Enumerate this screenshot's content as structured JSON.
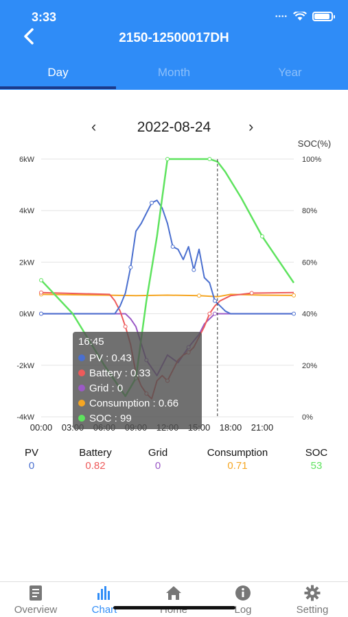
{
  "status": {
    "time": "3:33"
  },
  "header": {
    "title": "2150-12500017DH"
  },
  "tabs": [
    {
      "label": "Day"
    },
    {
      "label": "Month"
    },
    {
      "label": "Year"
    }
  ],
  "date": {
    "prev_label": "‹",
    "value": "2022-08-24",
    "next_label": "›"
  },
  "colors": {
    "pv": "#4a6fcf",
    "battery": "#ee5a5a",
    "grid": "#9b59c6",
    "consumption": "#f5a623",
    "soc": "#5ee35e",
    "accent": "#2f8cf7"
  },
  "chart_data": {
    "type": "line",
    "x_ticks": [
      "00:00",
      "03:00",
      "06:00",
      "09:00",
      "12:00",
      "15:00",
      "18:00",
      "21:00"
    ],
    "y_left_ticks": [
      "6kW",
      "4kW",
      "2kW",
      "0kW",
      "-2kW",
      "-4kW"
    ],
    "y_right_label": "SOC(%)",
    "y_right_ticks": [
      "100%",
      "80%",
      "60%",
      "40%",
      "20%",
      "0%"
    ],
    "ylim_left": [
      -4,
      6
    ],
    "ylim_right": [
      0,
      100
    ],
    "xlim_hours": [
      0,
      24
    ],
    "cursor_time": "16:45",
    "series": [
      {
        "name": "PV",
        "x": [
          0,
          7,
          7.5,
          8,
          8.5,
          9,
          9.5,
          10,
          10.5,
          11,
          11.5,
          12,
          12.5,
          13,
          13.5,
          14,
          14.5,
          15,
          15.5,
          16,
          16.5,
          17,
          17.5,
          18,
          24
        ],
        "y": [
          0,
          0,
          0.3,
          0.8,
          1.8,
          3.2,
          3.5,
          3.9,
          4.3,
          4.4,
          4.1,
          3.5,
          2.6,
          2.5,
          2.1,
          2.6,
          1.7,
          2.5,
          1.4,
          1.2,
          0.5,
          0.3,
          0.1,
          0,
          0
        ]
      },
      {
        "name": "Battery",
        "x": [
          0,
          6.5,
          7,
          7.5,
          8,
          8.5,
          9,
          9.5,
          10,
          10.5,
          11,
          11.5,
          12,
          12.5,
          13,
          13.5,
          14,
          14.5,
          15,
          15.5,
          16,
          16.5,
          17,
          18,
          20,
          24
        ],
        "y": [
          0.82,
          0.75,
          0.5,
          0.1,
          -0.5,
          -1.2,
          -2.3,
          -2.8,
          -3.1,
          -3.3,
          -2.6,
          -2.4,
          -2.6,
          -2.2,
          -1.8,
          -1.6,
          -1.5,
          -1.3,
          -0.9,
          -0.5,
          0,
          0.3,
          0.5,
          0.7,
          0.8,
          0.82
        ]
      },
      {
        "name": "Grid",
        "x": [
          0,
          8,
          8.5,
          9,
          10,
          11,
          12,
          13,
          14,
          15,
          15.5,
          16,
          16.5,
          17,
          24
        ],
        "y": [
          0,
          0,
          -0.2,
          -0.5,
          -1.8,
          -2.4,
          -1.6,
          -1.9,
          -1.3,
          -0.8,
          -0.4,
          -0.2,
          0,
          0,
          0
        ]
      },
      {
        "name": "Consumption",
        "x": [
          0,
          6,
          9,
          12,
          15,
          16.75,
          18,
          21,
          24
        ],
        "y": [
          0.75,
          0.72,
          0.7,
          0.72,
          0.7,
          0.66,
          0.75,
          0.72,
          0.71
        ]
      },
      {
        "name": "SOC",
        "axis": "right",
        "x": [
          0,
          3,
          6,
          8,
          9,
          10,
          11,
          11.5,
          12,
          13,
          14,
          15,
          16,
          16.75,
          17.5,
          19,
          21,
          24
        ],
        "y": [
          53,
          40,
          20,
          8,
          15,
          45,
          70,
          85,
          100,
          100,
          100,
          100,
          100,
          99,
          95,
          85,
          70,
          52
        ]
      }
    ]
  },
  "tooltip": {
    "time": "16:45",
    "rows": [
      {
        "label": "PV : 0.43",
        "color": "#4a6fcf"
      },
      {
        "label": "Battery : 0.33",
        "color": "#ee5a5a"
      },
      {
        "label": "Grid : 0",
        "color": "#9b59c6"
      },
      {
        "label": "Consumption : 0.66",
        "color": "#f5a623"
      },
      {
        "label": "SOC : 99",
        "color": "#5ee35e"
      }
    ]
  },
  "summary": [
    {
      "label": "PV",
      "value": "0",
      "color": "#4a6fcf"
    },
    {
      "label": "Battery",
      "value": "0.82",
      "color": "#ee5a5a"
    },
    {
      "label": "Grid",
      "value": "0",
      "color": "#9b59c6"
    },
    {
      "label": "Consumption",
      "value": "0.71",
      "color": "#f5a623"
    },
    {
      "label": "SOC",
      "value": "53",
      "color": "#5ee35e"
    }
  ],
  "tabbar": [
    {
      "label": "Overview",
      "icon": "document-icon"
    },
    {
      "label": "Chart",
      "icon": "chart-icon"
    },
    {
      "label": "Home",
      "icon": "home-icon"
    },
    {
      "label": "Log",
      "icon": "info-icon"
    },
    {
      "label": "Setting",
      "icon": "gear-icon"
    }
  ]
}
